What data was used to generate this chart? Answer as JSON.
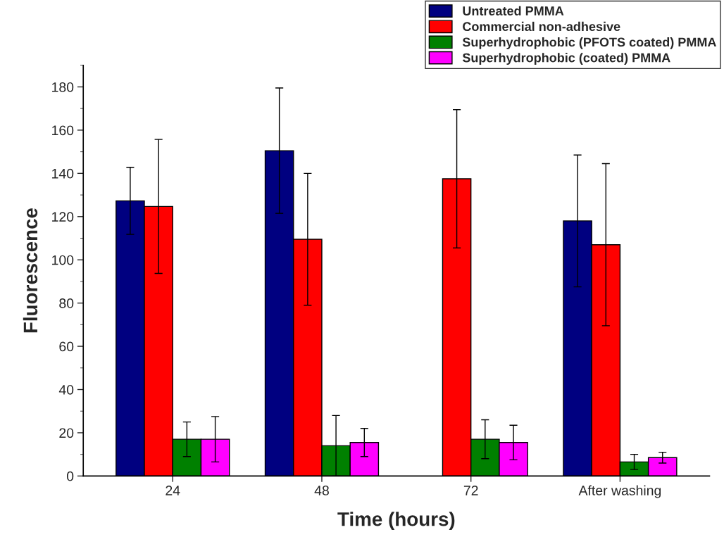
{
  "chart_data": {
    "type": "bar",
    "xlabel": "Time (hours)",
    "ylabel": "Fluorescence",
    "categories": [
      "24",
      "48",
      "72",
      "After washing"
    ],
    "series": [
      {
        "name": "Untreated PMMA",
        "color": "#000080",
        "values": [
          127.3,
          150.5,
          null,
          118
        ],
        "errors": [
          15.5,
          29,
          null,
          30.5
        ]
      },
      {
        "name": "Commercial non-adhesive",
        "color": "#ff0000",
        "values": [
          124.7,
          109.5,
          137.5,
          107
        ],
        "errors": [
          31,
          30.5,
          32,
          37.5
        ]
      },
      {
        "name": "Superhydrophobic (PFOTS coated) PMMA",
        "color": "#008000",
        "values": [
          17,
          14,
          17,
          6.5
        ],
        "errors": [
          8,
          14,
          9,
          3.5
        ]
      },
      {
        "name": "Superhydrophobic (coated) PMMA",
        "color": "#ff00ff",
        "values": [
          17,
          15.5,
          15.5,
          8.5
        ],
        "errors": [
          10.5,
          6.5,
          8,
          2.5
        ]
      }
    ],
    "ylim": [
      0,
      190
    ],
    "yticks": [
      0,
      20,
      40,
      60,
      80,
      100,
      120,
      140,
      160,
      180
    ],
    "grid": false,
    "legend": "top right"
  }
}
